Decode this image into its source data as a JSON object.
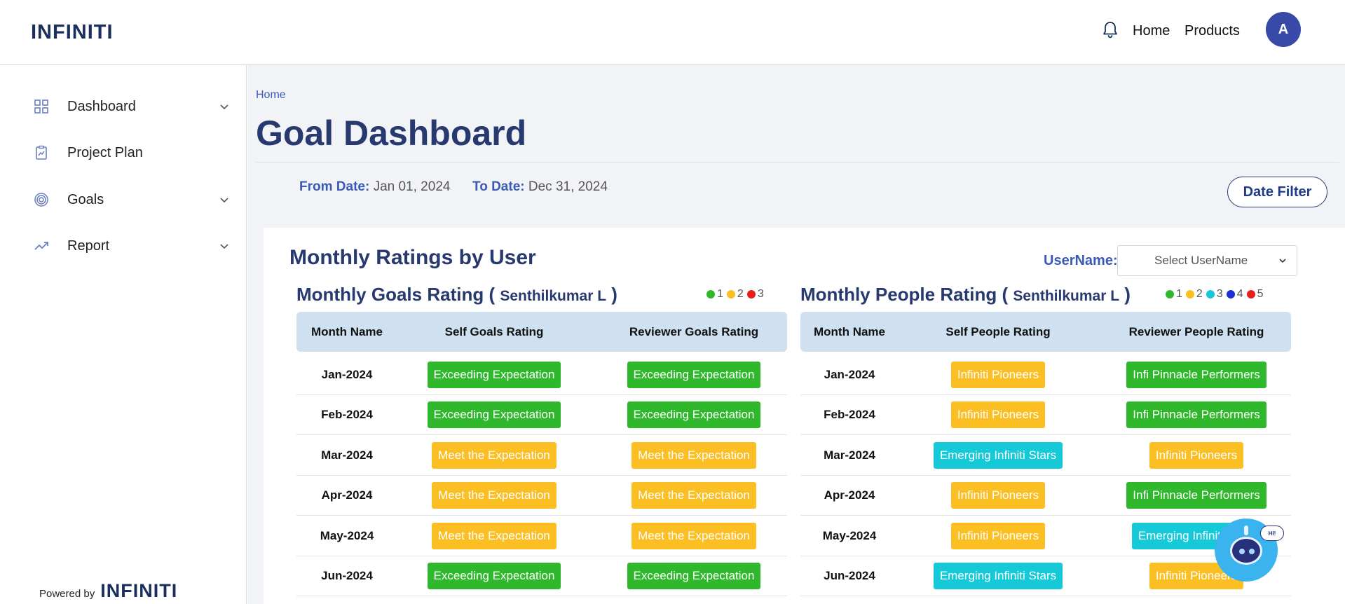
{
  "brand": {
    "name": "INFINITI"
  },
  "topbar": {
    "nav": [
      "Home",
      "Products"
    ],
    "avatar_initial": "A"
  },
  "sidebar": {
    "items": [
      {
        "label": "Dashboard",
        "icon": "grid-icon",
        "expandable": true
      },
      {
        "label": "Project Plan",
        "icon": "clipboard-chart-icon",
        "expandable": false
      },
      {
        "label": "Goals",
        "icon": "target-icon",
        "expandable": true
      },
      {
        "label": "Report",
        "icon": "trending-up-icon",
        "expandable": true
      }
    ],
    "powered_by": "Powered by",
    "powered_logo": "INFINITI"
  },
  "main": {
    "breadcrumb": "Home",
    "title": "Goal Dashboard",
    "from_label": "From Date:",
    "from_value": "Jan 01, 2024",
    "to_label": "To Date:",
    "to_value": "Dec 31, 2024",
    "date_filter_label": "Date Filter"
  },
  "card": {
    "title": "Monthly Ratings by User",
    "username_label": "UserName:",
    "username_placeholder": "Select UserName"
  },
  "colors": {
    "green": "#2fb82c",
    "orange": "#fbbf24",
    "cyan": "#16c9d8",
    "blue": "#1f2fd6",
    "red": "#ea1d1d",
    "title": "#27396e",
    "accent": "#3a5ab8"
  },
  "goals": {
    "title": "Monthly Goals Rating (",
    "user": "Senthilkumar L",
    "close": ")",
    "legend": [
      {
        "label": "1",
        "color": "#2fb82c"
      },
      {
        "label": "2",
        "color": "#fbbf24"
      },
      {
        "label": "3",
        "color": "#ea1d1d"
      }
    ],
    "columns": [
      "Month Name",
      "Self Goals Rating",
      "Reviewer Goals Rating"
    ],
    "rows": [
      {
        "month": "Jan-2024",
        "self": "Exceeding Expectation",
        "self_color": "#2fb82c",
        "reviewer": "Exceeding Expectation",
        "reviewer_color": "#2fb82c"
      },
      {
        "month": "Feb-2024",
        "self": "Exceeding Expectation",
        "self_color": "#2fb82c",
        "reviewer": "Exceeding Expectation",
        "reviewer_color": "#2fb82c"
      },
      {
        "month": "Mar-2024",
        "self": "Meet the Expectation",
        "self_color": "#fbbf24",
        "reviewer": "Meet the Expectation",
        "reviewer_color": "#fbbf24"
      },
      {
        "month": "Apr-2024",
        "self": "Meet the Expectation",
        "self_color": "#fbbf24",
        "reviewer": "Meet the Expectation",
        "reviewer_color": "#fbbf24"
      },
      {
        "month": "May-2024",
        "self": "Meet the Expectation",
        "self_color": "#fbbf24",
        "reviewer": "Meet the Expectation",
        "reviewer_color": "#fbbf24"
      },
      {
        "month": "Jun-2024",
        "self": "Exceeding Expectation",
        "self_color": "#2fb82c",
        "reviewer": "Exceeding Expectation",
        "reviewer_color": "#2fb82c"
      }
    ]
  },
  "people": {
    "title": "Monthly People Rating (",
    "user": "Senthilkumar L",
    "close": ")",
    "legend": [
      {
        "label": "1",
        "color": "#2fb82c"
      },
      {
        "label": "2",
        "color": "#fbbf24"
      },
      {
        "label": "3",
        "color": "#16c9d8"
      },
      {
        "label": "4",
        "color": "#1f2fd6"
      },
      {
        "label": "5",
        "color": "#ea1d1d"
      }
    ],
    "columns": [
      "Month Name",
      "Self People Rating",
      "Reviewer People Rating"
    ],
    "rows": [
      {
        "month": "Jan-2024",
        "self": "Infiniti Pioneers",
        "self_color": "#fbbf24",
        "reviewer": "Infi Pinnacle Performers",
        "reviewer_color": "#2fb82c"
      },
      {
        "month": "Feb-2024",
        "self": "Infiniti Pioneers",
        "self_color": "#fbbf24",
        "reviewer": "Infi Pinnacle Performers",
        "reviewer_color": "#2fb82c"
      },
      {
        "month": "Mar-2024",
        "self": "Emerging Infiniti Stars",
        "self_color": "#16c9d8",
        "reviewer": "Infiniti Pioneers",
        "reviewer_color": "#fbbf24"
      },
      {
        "month": "Apr-2024",
        "self": "Infiniti Pioneers",
        "self_color": "#fbbf24",
        "reviewer": "Infi Pinnacle Performers",
        "reviewer_color": "#2fb82c"
      },
      {
        "month": "May-2024",
        "self": "Infiniti Pioneers",
        "self_color": "#fbbf24",
        "reviewer": "Emerging Infiniti Stars",
        "reviewer_color": "#16c9d8"
      },
      {
        "month": "Jun-2024",
        "self": "Emerging Infiniti Stars",
        "self_color": "#16c9d8",
        "reviewer": "Infiniti Pioneers",
        "reviewer_color": "#fbbf24"
      }
    ]
  },
  "chatbot": {
    "bubble_text": "HI!"
  }
}
